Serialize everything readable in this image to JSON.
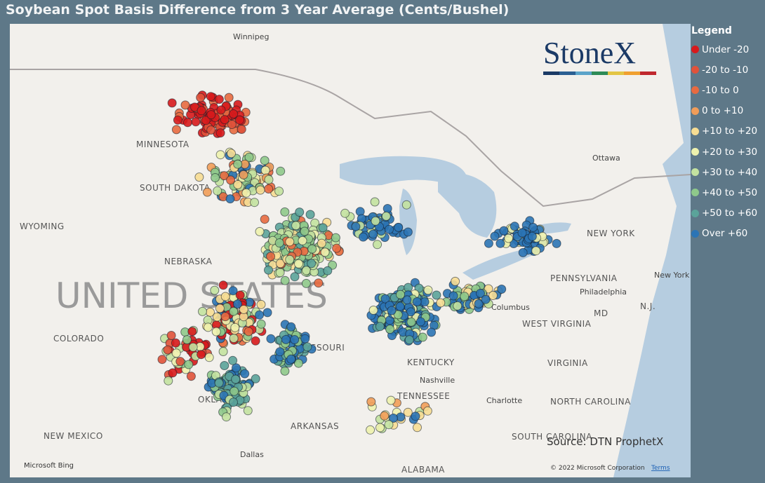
{
  "header": {
    "title": "Soybean Spot Basis Difference from 3 Year Average (Cents/Bushel)"
  },
  "legend": {
    "title": "Legend",
    "items": [
      {
        "label": "Under -20",
        "color": "#d7191c"
      },
      {
        "label": "-20 to -10",
        "color": "#e0523a"
      },
      {
        "label": "-10 to 0",
        "color": "#e86a40"
      },
      {
        "label": "0 to +10",
        "color": "#f19d59"
      },
      {
        "label": "+10 to +20",
        "color": "#f7dd93"
      },
      {
        "label": "+20 to +30",
        "color": "#eef2ae"
      },
      {
        "label": "+30 to +40",
        "color": "#c3e2a0"
      },
      {
        "label": "+40 to +50",
        "color": "#8fc98b"
      },
      {
        "label": "+50 to +60",
        "color": "#5ba39a"
      },
      {
        "label": "Over +60",
        "color": "#2b74b5"
      }
    ]
  },
  "map": {
    "country_label": "UNITED STATES",
    "labels": [
      "Winnipeg",
      "MINNESOTA",
      "SOUTH DAKOTA",
      "WYOMING",
      "NEBRASKA",
      "COLORADO",
      "MISSOURI",
      "KENTUCKY",
      "TENNESSEE",
      "Nashville",
      "OKLAHOMA",
      "ARKANSAS",
      "NEW MEXICO",
      "Dallas",
      "ALABAMA",
      "Charlotte",
      "NORTH CAROLINA",
      "SOUTH CAROLINA",
      "VIRGINIA",
      "WEST VIRGINIA",
      "Columbus",
      "PENNSYLVANIA",
      "Philadelphia",
      "NEW YORK",
      "New York",
      "Ottawa",
      "MD",
      "N.J."
    ]
  },
  "logo": "StoneX",
  "source": "Source: DTN ProphetX",
  "attribution": "Microsoft Bing",
  "copyright": "© 2022 Microsoft Corporation",
  "terms": "Terms"
}
